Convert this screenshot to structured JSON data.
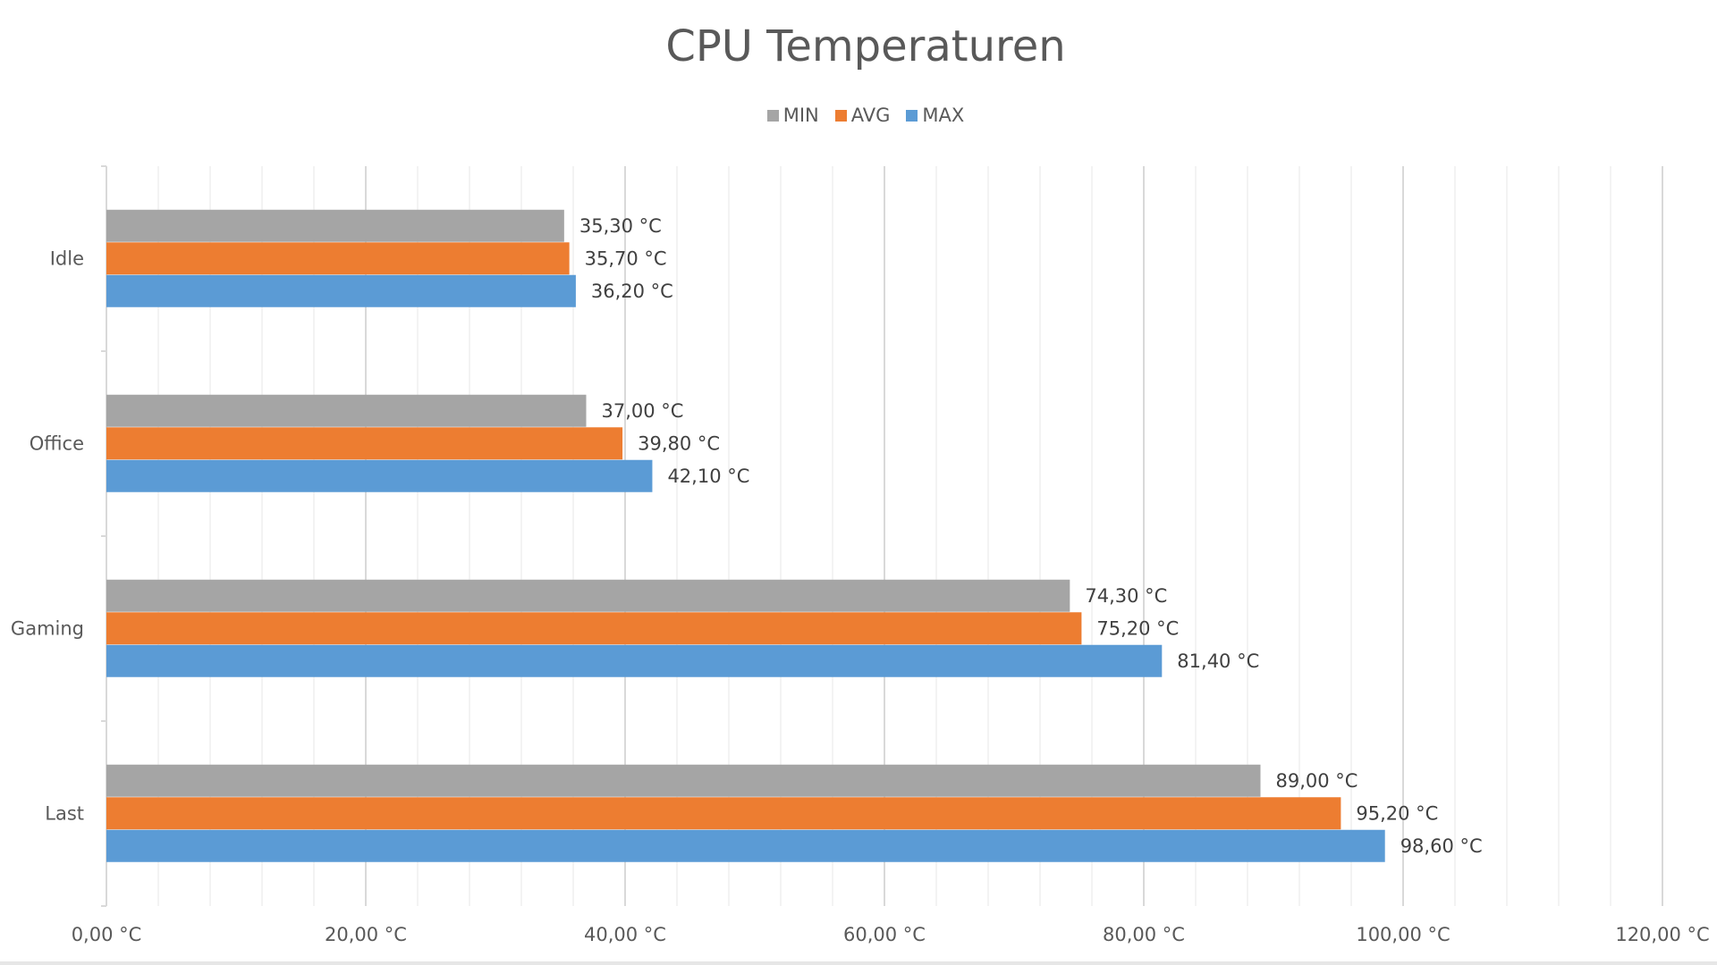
{
  "chart_data": {
    "type": "bar",
    "orientation": "horizontal",
    "title": "CPU Temperaturen",
    "categories": [
      "Idle",
      "Office",
      "Gaming",
      "Last"
    ],
    "series": [
      {
        "name": "MIN",
        "color": "#a5a5a5",
        "values": [
          35.3,
          37.0,
          74.3,
          89.0
        ],
        "labels": [
          "35,30 °C",
          "37,00 °C",
          "74,30 °C",
          "89,00 °C"
        ]
      },
      {
        "name": "AVG",
        "color": "#ed7d31",
        "values": [
          35.7,
          39.8,
          75.2,
          95.2
        ],
        "labels": [
          "35,70 °C",
          "39,80 °C",
          "75,20 °C",
          "95,20 °C"
        ]
      },
      {
        "name": "MAX",
        "color": "#5b9bd5",
        "values": [
          36.2,
          42.1,
          81.4,
          98.6
        ],
        "labels": [
          "36,20 °C",
          "42,10 °C",
          "81,40 °C",
          "98,60 °C"
        ]
      }
    ],
    "xlim": [
      0,
      120
    ],
    "xticks": [
      0,
      20,
      40,
      60,
      80,
      100,
      120
    ],
    "xtick_labels": [
      "0,00 °C",
      "20,00 °C",
      "40,00 °C",
      "60,00 °C",
      "80,00 °C",
      "100,00 °C",
      "120,00 °C"
    ],
    "minor_grid_step": 4,
    "grid": true,
    "legend_position": "top"
  }
}
